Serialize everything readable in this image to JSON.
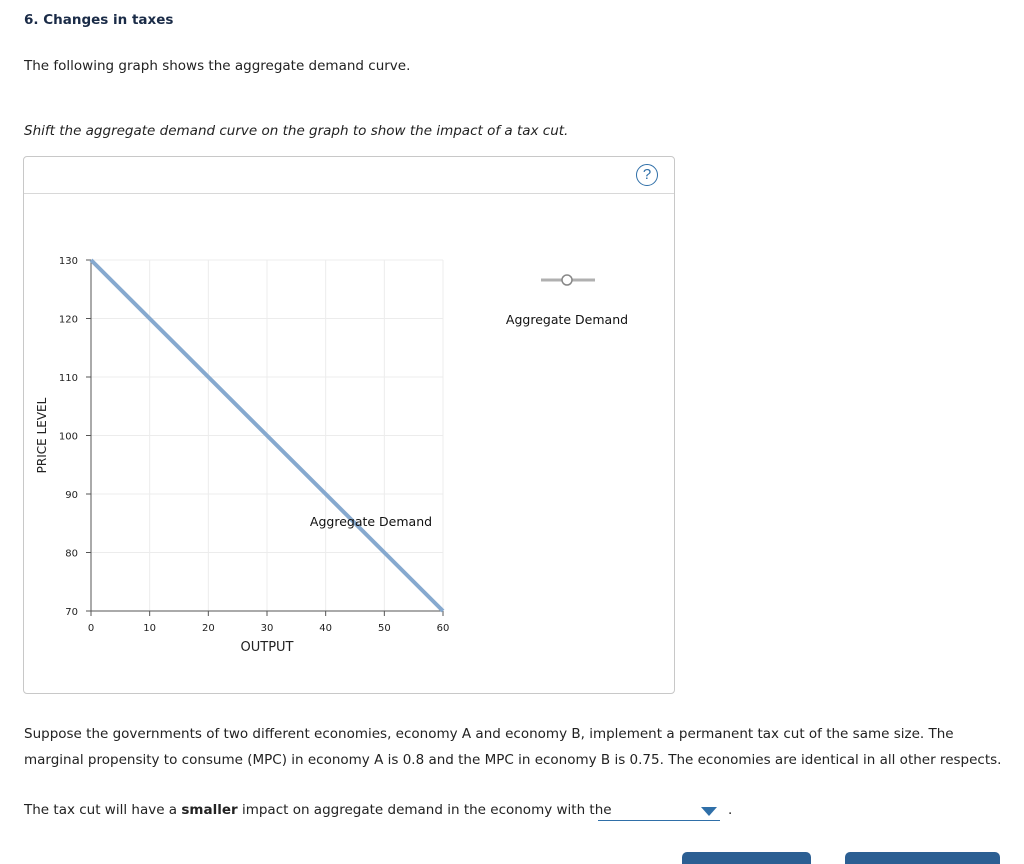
{
  "question": {
    "number_title": "6. Changes in taxes",
    "intro": "The following graph shows the aggregate demand curve.",
    "instruction": "Shift the aggregate demand curve on the graph to show the impact of a tax cut."
  },
  "graph_panel": {
    "help_label": "?"
  },
  "chart_data": {
    "type": "line",
    "xlabel": "OUTPUT",
    "ylabel": "PRICE LEVEL",
    "xlim": [
      0,
      60
    ],
    "ylim": [
      70,
      130
    ],
    "xticks": [
      0,
      10,
      20,
      30,
      40,
      50,
      60
    ],
    "yticks": [
      70,
      80,
      90,
      100,
      110,
      120,
      130
    ],
    "grid": true,
    "series": [
      {
        "name": "Aggregate Demand",
        "x": [
          0,
          60
        ],
        "y": [
          130,
          70
        ],
        "color": "#86a9cf"
      }
    ],
    "curve_label": "Aggregate Demand",
    "palette_tool": {
      "label": "Aggregate Demand",
      "color": "#b0b0b0"
    }
  },
  "followup": {
    "paragraph": "Suppose the governments of two different economies, economy A and economy B, implement a permanent tax cut of the same size. The marginal propensity to consume (MPC) in economy A is 0.8 and the MPC in economy B is 0.75. The economies are identical in all other respects.",
    "sentence_pre": "The tax cut will have a ",
    "sentence_bold": "smaller",
    "sentence_post": " impact on aggregate demand in the economy with the",
    "dropdown_value": "",
    "period": "."
  },
  "accent_color": "#2f6fa8"
}
